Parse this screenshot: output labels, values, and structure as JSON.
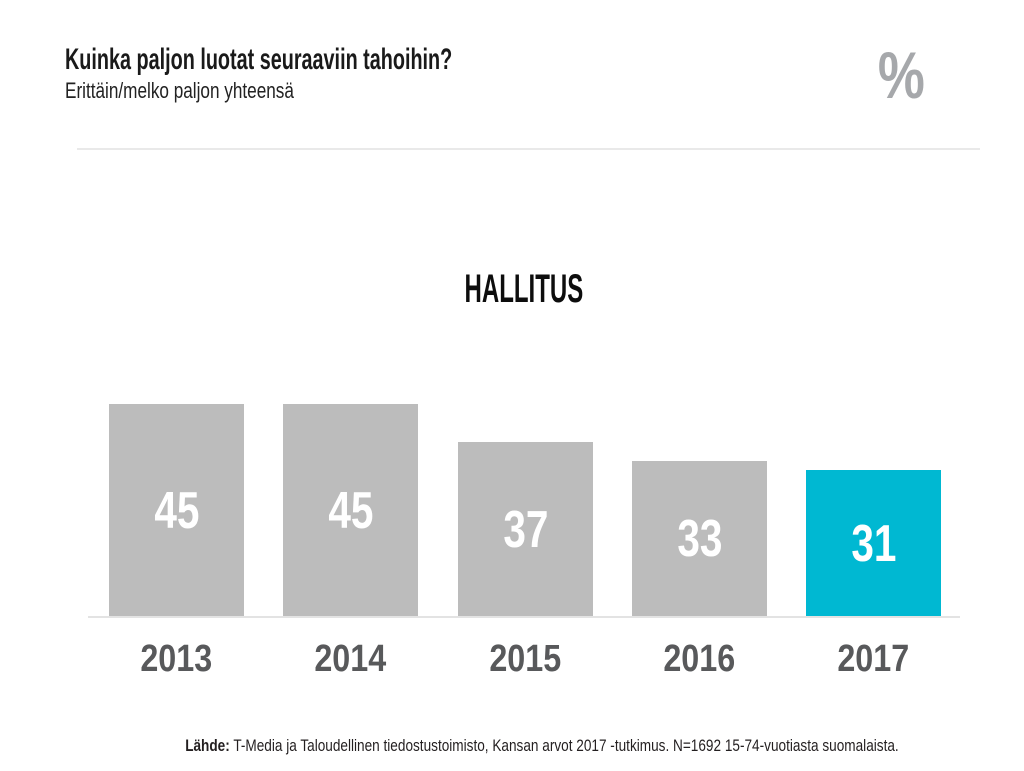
{
  "header": {
    "title": "Kuinka paljon luotat seuraaviin tahoihin?",
    "subtitle": "Erittäin/melko paljon yhteensä",
    "unit_symbol": "%"
  },
  "chart_data": {
    "type": "bar",
    "title": "HALLITUS",
    "categories": [
      "2013",
      "2014",
      "2015",
      "2016",
      "2017"
    ],
    "values": [
      45,
      45,
      37,
      33,
      31
    ],
    "ylim": [
      0,
      45
    ],
    "grid": false,
    "legend": "none",
    "value_label_position": "inside-center",
    "value_label_color": "#ffffff",
    "category_label_color": "#58595b",
    "bar_color_default": "#bcbcbc",
    "bar_color_highlight": "#00b8d2",
    "highlight_index": 4,
    "highlight_category": "2017"
  },
  "footer": {
    "label": "Lähde:",
    "text": "T-Media ja Taloudellinen tiedostustoimisto, Kansan arvot 2017 -tutkimus. N=1692 15-74-vuotiasta suomalaista."
  }
}
